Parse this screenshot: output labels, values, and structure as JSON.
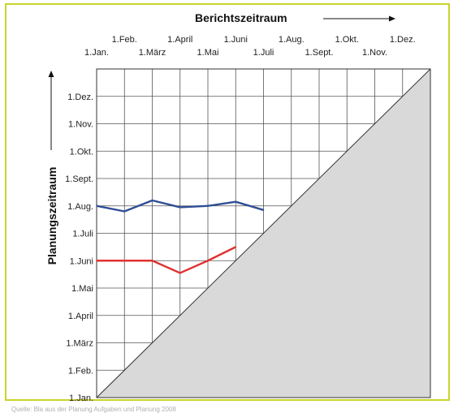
{
  "chart_data": {
    "type": "line",
    "chart_kind": "milestone-trend-analysis",
    "xlabel": "Berichtszeitraum",
    "ylabel": "Planungszeitraum",
    "x_ticks": [
      "1.Jan.",
      "1.Feb.",
      "1.März",
      "1.April",
      "1.Mai",
      "1.Juni",
      "1.Juli",
      "1.Aug.",
      "1.Sept.",
      "1.Okt.",
      "1.Nov.",
      "1.Dez."
    ],
    "y_ticks": [
      "1.Jan.",
      "1.Feb.",
      "1.März",
      "1.April",
      "1.Mai",
      "1.Juni",
      "1.Juli",
      "1.Aug.",
      "1.Sept.",
      "1.Okt.",
      "1.Nov.",
      "1.Dez."
    ],
    "x_range": [
      "1.Jan.",
      "1.Dez."
    ],
    "y_range": [
      "1.Jan.",
      "1.Dez."
    ],
    "grid": true,
    "diagonal_region": "shaded area below the diagonal (report date = planned date)",
    "series": [
      {
        "color": "#2e4e94",
        "points": [
          {
            "x": "1.Jan.",
            "y": "1.Aug."
          },
          {
            "x": "1.Feb.",
            "y": "1.Aug. − 0.2 Monate"
          },
          {
            "x": "1.März",
            "y": "1.Aug. + 0.2 Monate"
          },
          {
            "x": "1.April",
            "y": "1.Aug."
          },
          {
            "x": "1.Mai",
            "y": "1.Aug."
          },
          {
            "x": "1.Juni",
            "y": "1.Aug. + 0.15 Monate"
          },
          {
            "x": "1.Juli",
            "y": "1.Aug. − 0.15 Monate"
          }
        ],
        "y_month_index": [
          7.0,
          6.8,
          7.2,
          6.95,
          7.0,
          7.15,
          6.85
        ]
      },
      {
        "color": "#e03131",
        "points": [
          {
            "x": "1.Jan.",
            "y": "1.Juni"
          },
          {
            "x": "1.Feb.",
            "y": "1.Juni"
          },
          {
            "x": "1.März",
            "y": "1.Juni"
          },
          {
            "x": "1.April",
            "y": "Mitte Mai"
          },
          {
            "x": "1.Mai",
            "y": "1.Juni"
          },
          {
            "x": "1.Juni",
            "y": "Mitte Juni"
          }
        ],
        "y_month_index": [
          5.0,
          5.0,
          5.0,
          4.55,
          5.0,
          5.5
        ]
      }
    ]
  },
  "colors": {
    "frame": "#c9d52a",
    "grid": "#555555",
    "shade": "#d9d9d9",
    "series_blue": "#2e4e94",
    "series_red": "#e03131"
  },
  "caption": "Quelle: Bla  aus der Planung  Aufgaben und Planung  2008"
}
